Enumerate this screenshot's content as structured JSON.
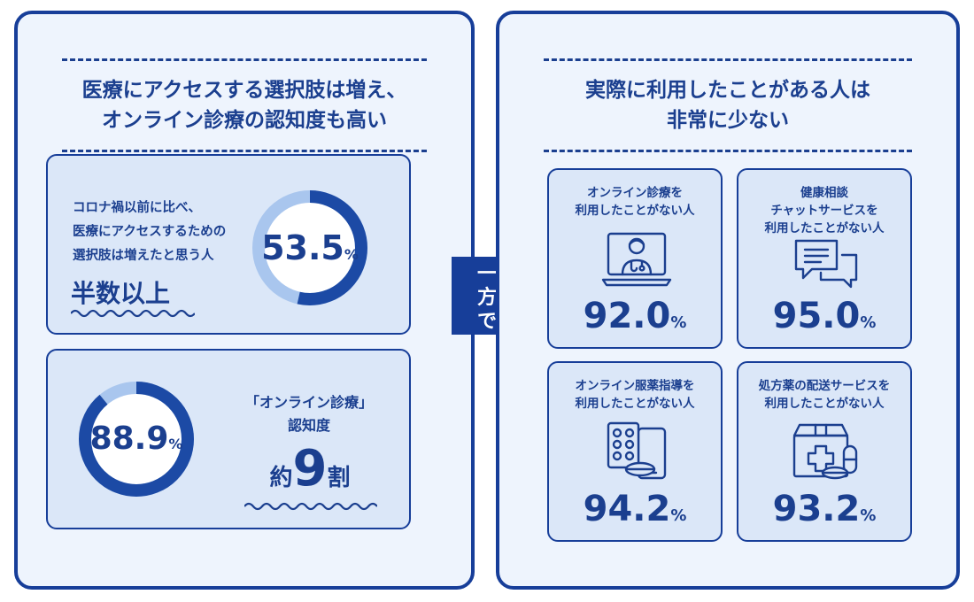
{
  "left_panel": {
    "title_lines": [
      "医療にアクセスする選択肢は増え、",
      "オンライン診療の認知度も高い"
    ],
    "majority_card": {
      "description_lines": [
        "コロナ禍以前に比べ、",
        "医療にアクセスするための",
        "選択肢は増えたと思う人"
      ],
      "headline": "半数以上",
      "value": "53.5",
      "unit": "%",
      "fraction": 0.535
    },
    "awareness_card": {
      "title_lines": [
        "「オンライン診療」",
        "認知度"
      ],
      "headline_prefix": "約",
      "headline_number": "9",
      "headline_suffix": "割",
      "value": "88.9",
      "unit": "%",
      "fraction": 0.889
    }
  },
  "contrast_label": "一方で",
  "right_panel": {
    "title_lines": [
      "実際に利用したことがある人は",
      "非常に少ない"
    ],
    "stats": [
      {
        "label_lines": [
          "オンライン診療を",
          "利用したことがない人"
        ],
        "value": "92.0",
        "unit": "%",
        "icon": "doctor-monitor-icon"
      },
      {
        "label_lines": [
          "健康相談",
          "チャットサービスを",
          "利用したことがない人"
        ],
        "value": "95.0",
        "unit": "%",
        "icon": "chat-bubbles-icon"
      },
      {
        "label_lines": [
          "オンライン服薬指導を",
          "利用したことがない人"
        ],
        "value": "94.2",
        "unit": "%",
        "icon": "pills-tablet-icon"
      },
      {
        "label_lines": [
          "処方薬の配送サービスを",
          "利用したことがない人"
        ],
        "value": "93.2",
        "unit": "%",
        "icon": "medicine-box-icon"
      }
    ]
  },
  "colors": {
    "navy": "#1b3f8f",
    "border": "#173e99",
    "panel_bg": "#eef4fd",
    "card_bg": "#dbe7f8",
    "ring_track": "#a9c6ee",
    "ring_fill": "#1c4aa5"
  }
}
